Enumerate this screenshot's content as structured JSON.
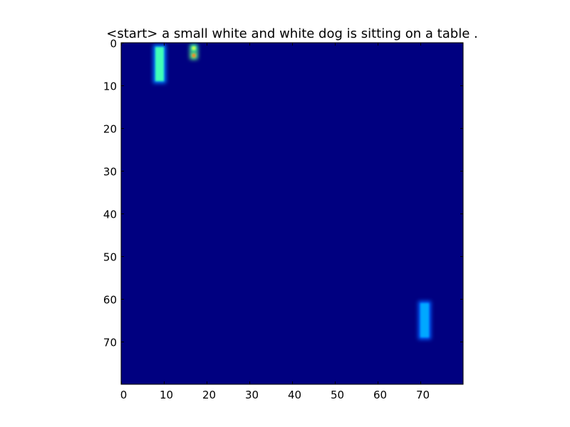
{
  "chart_data": {
    "type": "heatmap",
    "title": "<start> a small white and white dog is sitting on a table .",
    "xlabel": "",
    "ylabel": "",
    "xlim": [
      0,
      80
    ],
    "ylim": [
      80,
      0
    ],
    "x_ticks": [
      0,
      10,
      20,
      30,
      40,
      50,
      60,
      70
    ],
    "y_ticks": [
      0,
      10,
      20,
      30,
      40,
      50,
      60,
      70
    ],
    "grid": false,
    "colormap": "jet",
    "background_color": "#000080",
    "grid_size": [
      80,
      80
    ],
    "hotspots": [
      {
        "x0": 8,
        "x1": 10,
        "y0": 1,
        "y1": 9,
        "color": "#40ffb8",
        "glow": "#0080ff"
      },
      {
        "x0": 70,
        "x1": 72,
        "y0": 61,
        "y1": 69,
        "color": "#00a8ff",
        "glow": "#0060ff"
      },
      {
        "x0": 16.6,
        "x1": 17.4,
        "y0": 0.9,
        "y1": 1.7,
        "color": "#d4ff50",
        "glow": "#40ffa0"
      },
      {
        "x0": 16.6,
        "x1": 17.4,
        "y0": 2.6,
        "y1": 3.4,
        "color": "#ff8020",
        "glow": "#60ff80"
      }
    ]
  }
}
